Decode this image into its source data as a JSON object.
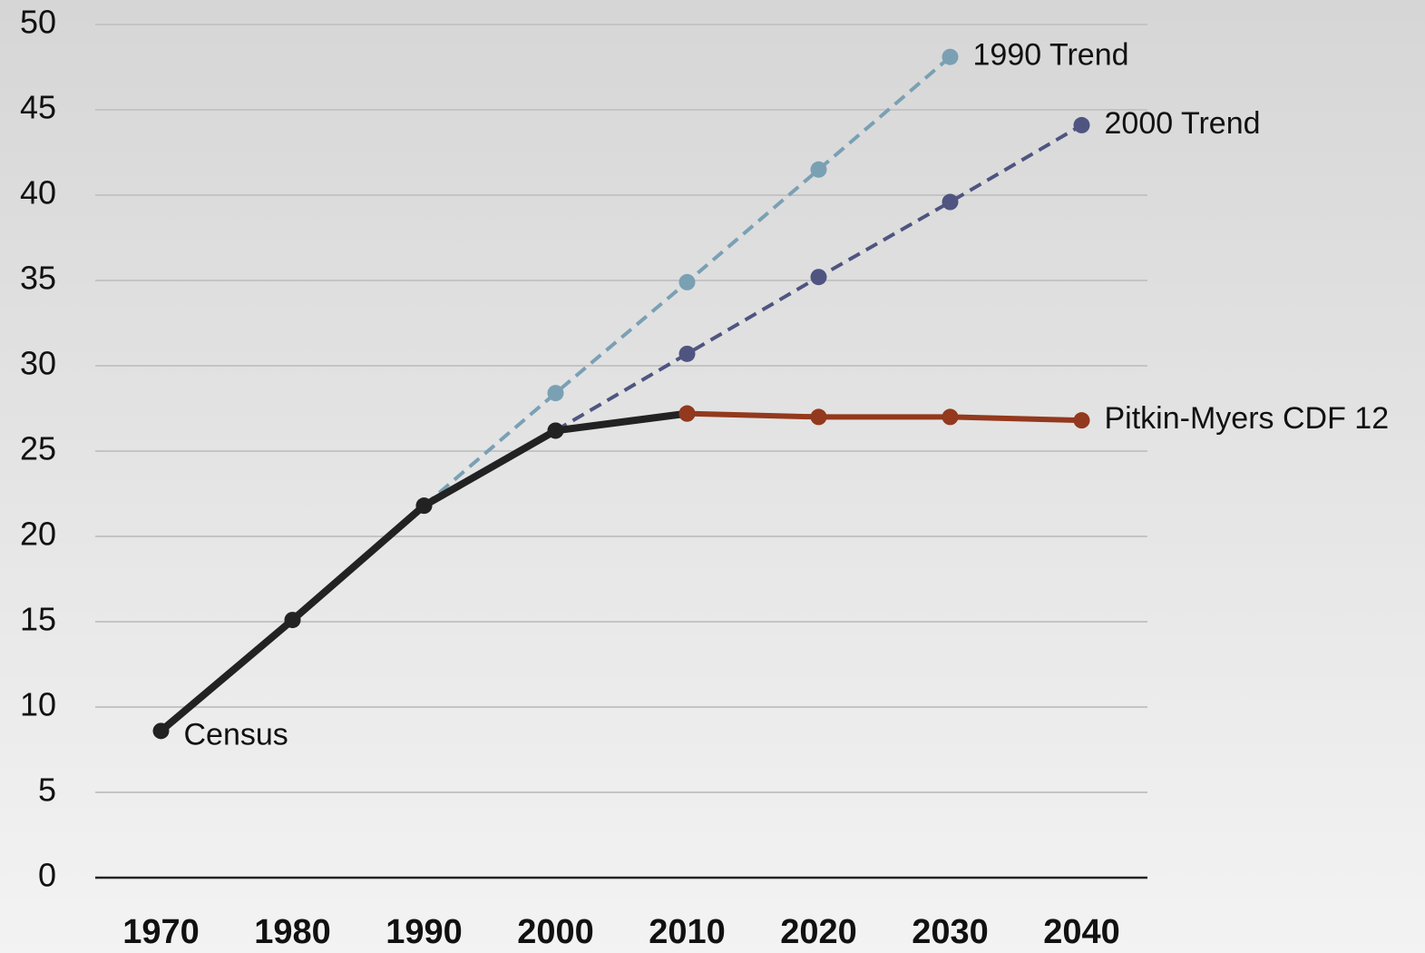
{
  "chart_data": {
    "type": "line",
    "categories": [
      "1970",
      "1980",
      "1990",
      "2000",
      "2010",
      "2020",
      "2030",
      "2040"
    ],
    "series": [
      {
        "name": "1990 Trend",
        "color": "#7aa0b4",
        "dashed": true,
        "label_position": "end",
        "values": [
          null,
          null,
          21.8,
          28.4,
          34.9,
          41.5,
          48.1,
          null
        ]
      },
      {
        "name": "2000 Trend",
        "color": "#4f5580",
        "dashed": true,
        "label_position": "end",
        "values": [
          null,
          null,
          null,
          26.2,
          30.7,
          35.2,
          39.6,
          44.1
        ]
      },
      {
        "name": "Census",
        "color": "#222222",
        "dashed": false,
        "label_position": "start",
        "values": [
          8.6,
          15.1,
          21.8,
          26.2,
          27.2,
          null,
          null,
          null
        ]
      },
      {
        "name": "Pitkin-Myers CDF 12",
        "color": "#93391d",
        "dashed": false,
        "label_position": "end",
        "values": [
          null,
          null,
          null,
          null,
          27.2,
          27.0,
          27.0,
          26.8
        ]
      }
    ],
    "ylim": [
      0,
      50
    ],
    "yticks": [
      0,
      5,
      10,
      15,
      20,
      25,
      30,
      35,
      40,
      45,
      50
    ],
    "grid": true
  }
}
